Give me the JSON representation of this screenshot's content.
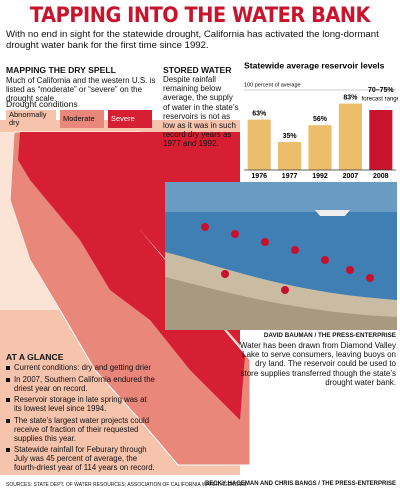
{
  "header": {
    "title": "TAPPING INTO THE WATER BANK",
    "subtitle": "With no end in sight for the statewide drought, California has activated the long-dormant drought water bank for the first time since 1992."
  },
  "map": {
    "heading": "MAPPING THE DRY SPELL",
    "text": "Much of California and the western U.S. is listed as “moderate” or “severe” on the drought scale.",
    "legend_title": "Drought conditions",
    "legend": [
      {
        "label": "Abnormally dry",
        "color": "#f6c3ac"
      },
      {
        "label": "Moderate",
        "color": "#e8877a"
      },
      {
        "label": "Severe",
        "color": "#d71f33"
      }
    ]
  },
  "stored_water": {
    "heading": "STORED WATER",
    "text": "Despite rainfall remaining below average, the supply of water in the state’s reservoirs is not as low as it was in such record dry years as 1977 and 1992."
  },
  "chart_data": {
    "type": "bar",
    "title": "Statewide average reservoir levels",
    "categories": [
      "1976",
      "1977",
      "1992",
      "2007",
      "2008"
    ],
    "values": [
      63,
      35,
      56,
      83,
      75
    ],
    "value_labels": [
      "63%",
      "35%",
      "56%",
      "83%",
      "70–75%"
    ],
    "colors": [
      "#ecbd6b",
      "#ecbd6b",
      "#ecbd6b",
      "#ecbd6b",
      "#c8142c"
    ],
    "annotation": "forecast range",
    "ylim": [
      0,
      100
    ],
    "yticks": [
      {
        "value": 100,
        "label": "100 percent of average"
      }
    ]
  },
  "photo": {
    "credit": "DAVID BAUMAN / THE PRESS-ENTERPRISE",
    "caption": "Water has been drawn from Diamond Valley Lake to serve consumers, leaving buoys on dry land. The reservoir could be used to store supplies transferred though the state’s drought water bank."
  },
  "at_a_glance": {
    "heading": "AT A GLANCE",
    "items": [
      "Current conditions: dry and getting drier",
      "In 2007, Southern California endured the driest year on record.",
      "Reservoir storage in late spring was at its lowest level since 1994.",
      "The state’s largest water projects could receive of fraction of their requested supplies this year.",
      "Statewide rainfall for Feburary through July was 45 percent of average, the fourth-driest year of 114 years on record."
    ]
  },
  "footer": {
    "sources": "SOURCES: STATE DEPT. OF WATER RESOURCES; ASSOCIATION OF CALIFORNIA WATER AGENCIES",
    "credits": "BECKY HAGEMAN AND CHRIS BANGS / THE PRESS-ENTERPRISE"
  }
}
